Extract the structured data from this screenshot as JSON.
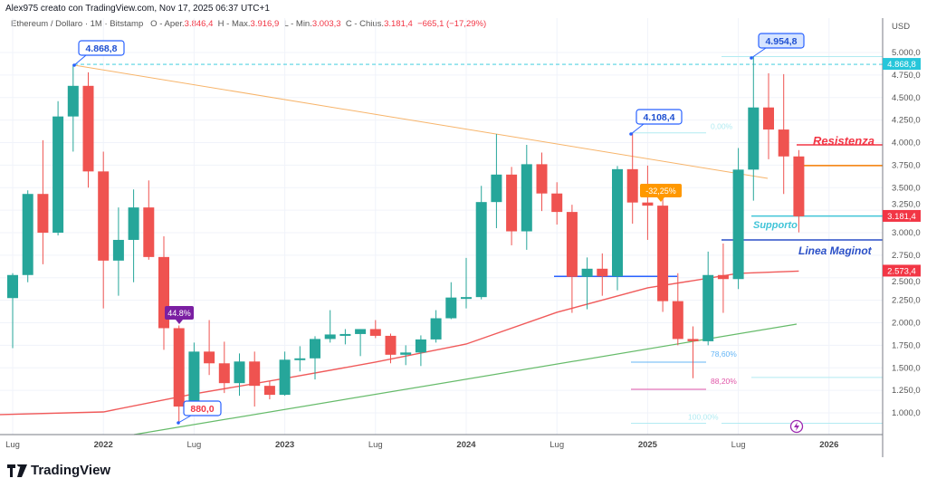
{
  "header": {
    "created_by": "Alex975 creato con TradingView.com, Nov 17, 2025 06:37 UTC+1"
  },
  "legend": {
    "symbol": "Ethereum / Dollaro · 1M · Bitstamp",
    "open_label": "O - Aper.",
    "open": "3.846,4",
    "high_label": "H - Max.",
    "high": "3.916,9",
    "low_label": "L - Min.",
    "low": "3.003,3",
    "close_label": "C - Chius.",
    "close": "3.181,4",
    "change": "−665,1 (−17,29%)"
  },
  "colors": {
    "up": "#26a69a",
    "down": "#ef5350",
    "ma": "#f05a5a",
    "trend_down": "#f7b46a",
    "trend_up": "#66bb6a",
    "support": "#40c4d8",
    "maginot": "#2a4fc7",
    "resistance": "#f23645"
  },
  "chart_data": {
    "type": "candlestick",
    "currency": "USD",
    "ylim": [
      700,
      5150
    ],
    "y_ticks": [
      "5.000,0",
      "4.750,0",
      "4.500,0",
      "4.250,0",
      "4.000,0",
      "3.750,0",
      "3.500,0",
      "3.250,0",
      "3.000,0",
      "2.750,0",
      "2.500,0",
      "2.250,0",
      "2.000,0",
      "1.750,0",
      "1.500,0",
      "1.250,0",
      "1.000,0"
    ],
    "y_tick_values": [
      5000,
      4750,
      4500,
      4250,
      4000,
      3750,
      3500,
      3250,
      3000,
      2750,
      2500,
      2250,
      2000,
      1750,
      1500,
      1250,
      1000
    ],
    "x_ticks": [
      {
        "label": "Lug",
        "month": 0,
        "bold": false
      },
      {
        "label": "2022",
        "month": 6,
        "bold": true
      },
      {
        "label": "Lug",
        "month": 12,
        "bold": false
      },
      {
        "label": "2023",
        "month": 18,
        "bold": true
      },
      {
        "label": "Lug",
        "month": 24,
        "bold": false
      },
      {
        "label": "2024",
        "month": 30,
        "bold": true
      },
      {
        "label": "Lug",
        "month": 36,
        "bold": false
      },
      {
        "label": "2025",
        "month": 42,
        "bold": true
      },
      {
        "label": "Lug",
        "month": 48,
        "bold": false
      },
      {
        "label": "2026",
        "month": 54,
        "bold": true
      }
    ],
    "start": "2021-07",
    "ohlc": [
      [
        2274,
        2550,
        1718,
        2530
      ],
      [
        2530,
        3470,
        2450,
        3430
      ],
      [
        3430,
        4027,
        2650,
        3000
      ],
      [
        3000,
        4460,
        2970,
        4290
      ],
      [
        4290,
        4868.8,
        3900,
        4630
      ],
      [
        4630,
        4780,
        3500,
        3680
      ],
      [
        3680,
        3900,
        2160,
        2690
      ],
      [
        2690,
        3280,
        2300,
        2920
      ],
      [
        2920,
        3480,
        2450,
        3280
      ],
      [
        3280,
        3580,
        2700,
        2730
      ],
      [
        2730,
        2960,
        1700,
        1940
      ],
      [
        1940,
        1970,
        880,
        1070
      ],
      [
        1070,
        1780,
        1000,
        1680
      ],
      [
        1680,
        2030,
        1420,
        1550
      ],
      [
        1550,
        1790,
        1220,
        1330
      ],
      [
        1330,
        1660,
        1190,
        1570
      ],
      [
        1570,
        1680,
        1070,
        1300
      ],
      [
        1300,
        1350,
        1150,
        1200
      ],
      [
        1200,
        1680,
        1190,
        1590
      ],
      [
        1590,
        1740,
        1460,
        1605
      ],
      [
        1605,
        1850,
        1370,
        1820
      ],
      [
        1820,
        2140,
        1780,
        1870
      ],
      [
        1870,
        1930,
        1760,
        1875
      ],
      [
        1875,
        1930,
        1630,
        1930
      ],
      [
        1930,
        2030,
        1830,
        1855
      ],
      [
        1855,
        1880,
        1550,
        1645
      ],
      [
        1645,
        1750,
        1530,
        1670
      ],
      [
        1670,
        1860,
        1520,
        1815
      ],
      [
        1815,
        2140,
        1780,
        2050
      ],
      [
        2050,
        2450,
        2040,
        2280
      ],
      [
        2280,
        2720,
        2160,
        2285
      ],
      [
        2285,
        3520,
        2260,
        3340
      ],
      [
        3340,
        4095,
        3050,
        3645
      ],
      [
        3645,
        3730,
        2860,
        3015
      ],
      [
        3015,
        3975,
        2810,
        3760
      ],
      [
        3760,
        3890,
        3240,
        3435
      ],
      [
        3435,
        3560,
        3090,
        3230
      ],
      [
        3230,
        3310,
        2110,
        2510
      ],
      [
        2510,
        2725,
        2150,
        2600
      ],
      [
        2600,
        2770,
        2300,
        2515
      ],
      [
        2515,
        3740,
        2360,
        3705
      ],
      [
        3705,
        4108.4,
        3100,
        3335
      ],
      [
        3335,
        3745,
        2920,
        3300
      ],
      [
        3300,
        3440,
        2120,
        2240
      ],
      [
        2240,
        2550,
        1750,
        1820
      ],
      [
        1820,
        1960,
        1385,
        1795
      ],
      [
        1795,
        2790,
        1750,
        2530
      ],
      [
        2530,
        2880,
        2110,
        2485
      ],
      [
        2485,
        3940,
        2375,
        3700
      ],
      [
        3700,
        4954.8,
        3355,
        4390
      ],
      [
        4390,
        4770,
        3815,
        4145
      ],
      [
        4145,
        4760,
        3430,
        3846.4
      ],
      [
        3846.4,
        3916.9,
        3003.3,
        3181.4
      ]
    ],
    "moving_average": [
      [
        -1,
        980
      ],
      [
        6,
        1010
      ],
      [
        12,
        1211
      ],
      [
        18,
        1382
      ],
      [
        24,
        1563
      ],
      [
        30,
        1764
      ],
      [
        36,
        2116
      ],
      [
        42,
        2387
      ],
      [
        48,
        2548
      ],
      [
        52,
        2573.4
      ]
    ],
    "annotations": {
      "high_2021": "4.868,8",
      "high_2025": "4.954,8",
      "high_2024": "4.108,4",
      "low_2022": "880,0",
      "drop_2022": "44.8%",
      "drop_2025": "-32,25%",
      "resistance": "Resistenza",
      "support": "Supporto",
      "maginot": "Linea Maginot",
      "fib": [
        {
          "label": "0,00%",
          "price": 4108.4,
          "color": "#b2ebf2"
        },
        {
          "label": "78,60%",
          "price": 1563,
          "color": "#64b5f6"
        },
        {
          "label": "88,20%",
          "price": 1261,
          "color": "#e056a8"
        },
        {
          "label": "100,00%",
          "price": 885,
          "color": "#b2ebf2"
        }
      ],
      "resistance_price": 3975,
      "orange_level_price": 3745,
      "support_price": 3185,
      "maginot_price": 2920,
      "maginot_2024_price": 2515
    },
    "price_labels": [
      {
        "text": "4.868,8",
        "price": 4868.8,
        "color": "#26c6da"
      },
      {
        "text": "3.181,4",
        "price": 3181.4,
        "color": "#f23645"
      },
      {
        "text": "2.573,4",
        "price": 2573.4,
        "color": "#f23645"
      }
    ]
  },
  "footer": {
    "logo": "TradingView"
  }
}
